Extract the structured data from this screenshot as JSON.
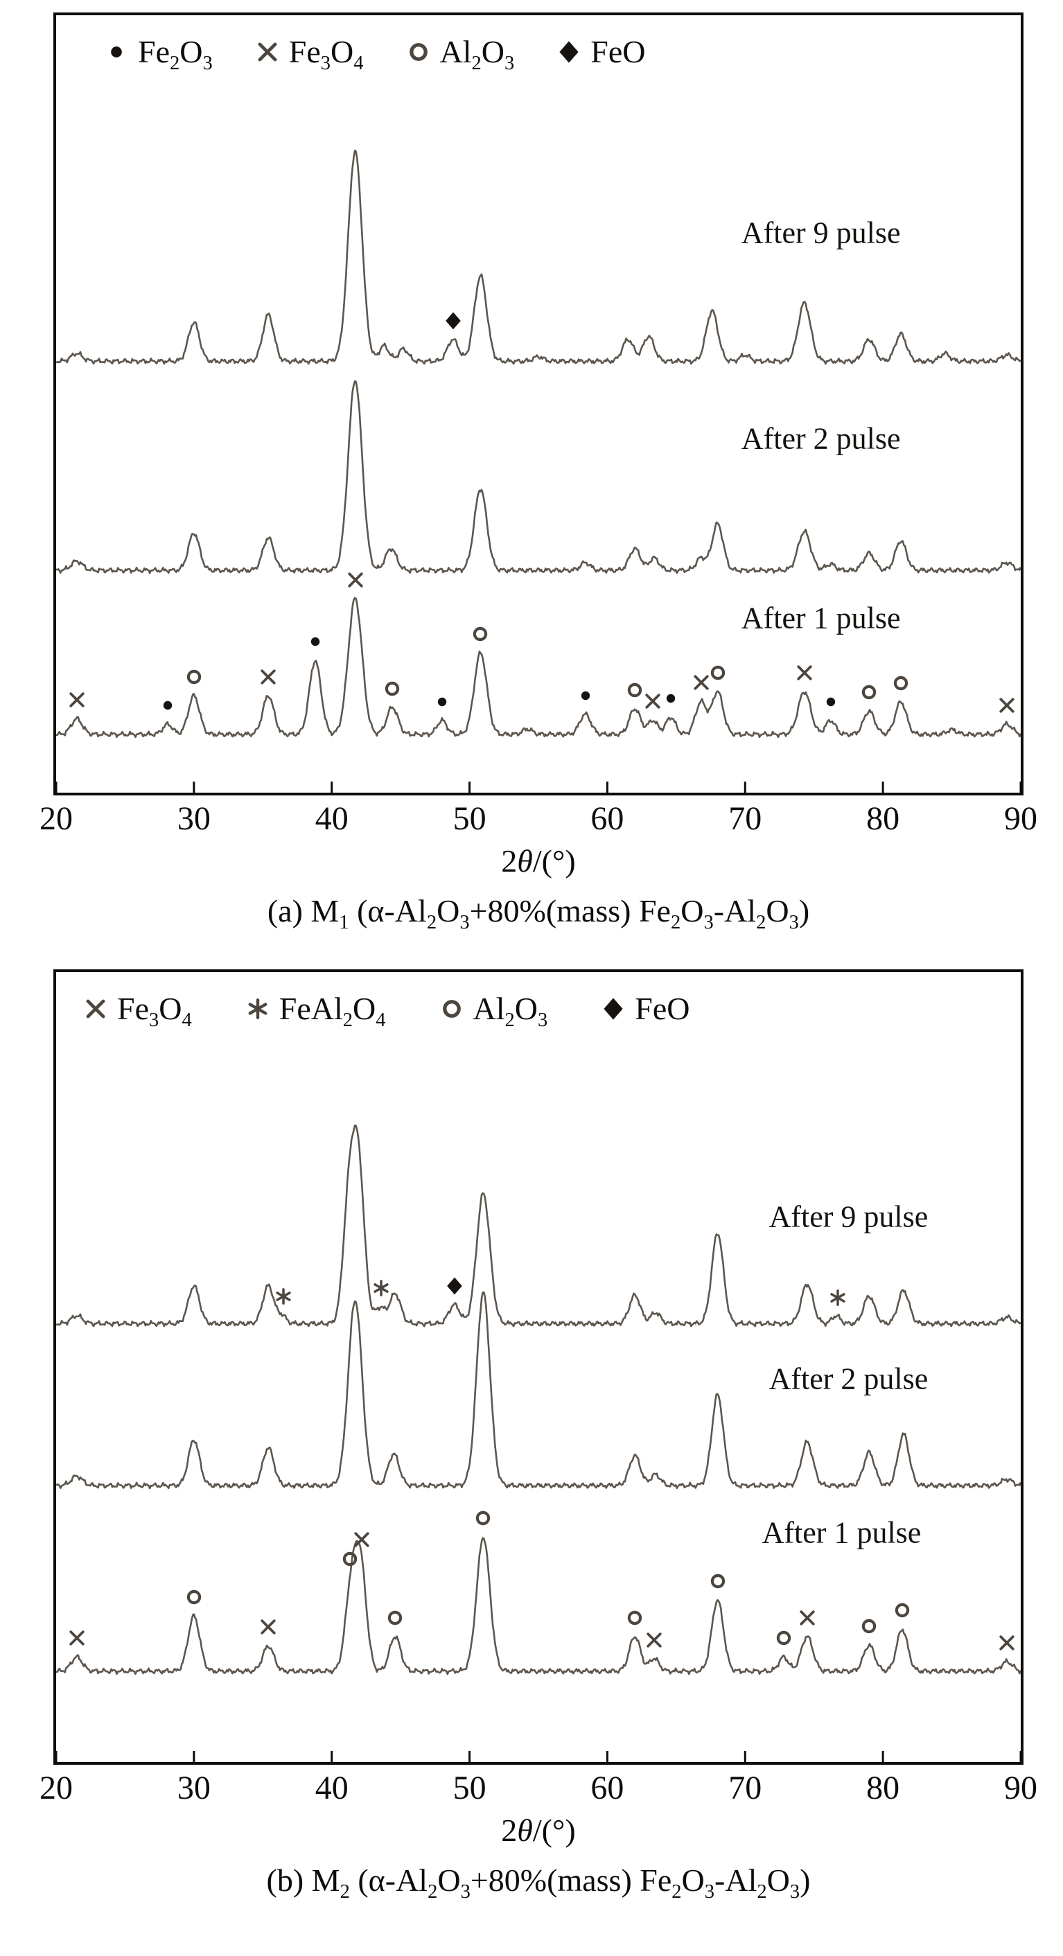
{
  "page": {
    "background": "#ffffff"
  },
  "colors": {
    "trace": "#5d564e",
    "axis": "#0e0d0b",
    "marker_black": "#15120f",
    "marker_gray": "#4d463f"
  },
  "chart_data": [
    {
      "type": "line",
      "kind": "xrd-pattern",
      "title": "",
      "xlabel": [
        [
          "2",
          0
        ],
        [
          "θ",
          0,
          "i"
        ],
        [
          "/(°)",
          0
        ]
      ],
      "ylabel": "",
      "xlim": [
        20,
        90
      ],
      "xticks": [
        20,
        30,
        40,
        50,
        60,
        70,
        80,
        90
      ],
      "grid": false,
      "legend_position": "top-left-inside",
      "legend_x": 70,
      "legend_gap": 62,
      "caption": [
        [
          "(a) M",
          0
        ],
        [
          "1",
          1
        ],
        [
          " (α-Al",
          0
        ],
        [
          "2",
          1
        ],
        [
          "O",
          0
        ],
        [
          "3",
          1
        ],
        [
          "+80%(mass) Fe",
          0
        ],
        [
          "2",
          1
        ],
        [
          "O",
          0
        ],
        [
          "3",
          1
        ],
        [
          "-Al",
          0
        ],
        [
          "2",
          1
        ],
        [
          "O",
          0
        ],
        [
          "3",
          1
        ],
        [
          ")",
          0
        ]
      ],
      "legend": [
        {
          "marker": "dot",
          "label": [
            [
              "Fe",
              0
            ],
            [
              "2",
              1
            ],
            [
              "O",
              0
            ],
            [
              "3",
              1
            ]
          ]
        },
        {
          "marker": "x",
          "label": [
            [
              "Fe",
              0
            ],
            [
              "3",
              1
            ],
            [
              "O",
              0
            ],
            [
              "4",
              1
            ]
          ]
        },
        {
          "marker": "o",
          "label": [
            [
              "Al",
              0
            ],
            [
              "2",
              1
            ],
            [
              "O",
              0
            ],
            [
              "3",
              1
            ]
          ]
        },
        {
          "marker": "diamond",
          "label": [
            [
              "FeO",
              0
            ]
          ]
        }
      ],
      "traces": [
        {
          "name": "After 1 pulse",
          "baseline": 0.075,
          "label_x": 75.5,
          "label_y": 0.225,
          "peaks": [
            [
              21.5,
              0.02,
              0.4
            ],
            [
              28.1,
              0.013,
              0.35
            ],
            [
              30.0,
              0.05,
              0.4
            ],
            [
              35.4,
              0.05,
              0.4
            ],
            [
              38.8,
              0.095,
              0.42
            ],
            [
              41.7,
              0.175,
              0.5
            ],
            [
              44.4,
              0.035,
              0.4
            ],
            [
              48.0,
              0.018,
              0.35
            ],
            [
              50.8,
              0.105,
              0.45
            ],
            [
              54.2,
              0.007,
              0.35
            ],
            [
              58.4,
              0.026,
              0.4
            ],
            [
              62.0,
              0.033,
              0.4
            ],
            [
              63.3,
              0.018,
              0.35
            ],
            [
              64.6,
              0.022,
              0.35
            ],
            [
              66.8,
              0.042,
              0.4
            ],
            [
              68.0,
              0.055,
              0.4
            ],
            [
              74.3,
              0.055,
              0.45
            ],
            [
              76.2,
              0.018,
              0.35
            ],
            [
              79.0,
              0.03,
              0.4
            ],
            [
              81.3,
              0.042,
              0.4
            ],
            [
              85.0,
              0.006,
              0.35
            ],
            [
              89.0,
              0.013,
              0.4
            ]
          ],
          "markers": [
            [
              21.5,
              "x"
            ],
            [
              28.1,
              "dot"
            ],
            [
              30.0,
              "o"
            ],
            [
              35.4,
              "x"
            ],
            [
              38.8,
              "dot"
            ],
            [
              41.7,
              "x"
            ],
            [
              44.4,
              "o"
            ],
            [
              48.0,
              "dot"
            ],
            [
              50.8,
              "o"
            ],
            [
              58.4,
              "dot"
            ],
            [
              62.0,
              "o"
            ],
            [
              63.3,
              "x"
            ],
            [
              64.6,
              "dot"
            ],
            [
              66.8,
              "x"
            ],
            [
              68.0,
              "o"
            ],
            [
              74.3,
              "x"
            ],
            [
              76.2,
              "dot"
            ],
            [
              79.0,
              "o"
            ],
            [
              81.3,
              "o"
            ],
            [
              89.0,
              "x"
            ]
          ]
        },
        {
          "name": "After 2 pulse",
          "baseline": 0.286,
          "label_x": 75.5,
          "label_y": 0.455,
          "peaks": [
            [
              21.5,
              0.012,
              0.4
            ],
            [
              30.0,
              0.048,
              0.4
            ],
            [
              35.4,
              0.042,
              0.4
            ],
            [
              41.7,
              0.245,
              0.5
            ],
            [
              44.3,
              0.028,
              0.4
            ],
            [
              50.8,
              0.105,
              0.45
            ],
            [
              58.4,
              0.01,
              0.35
            ],
            [
              62.0,
              0.028,
              0.4
            ],
            [
              63.4,
              0.016,
              0.35
            ],
            [
              66.8,
              0.016,
              0.35
            ],
            [
              68.0,
              0.06,
              0.4
            ],
            [
              74.3,
              0.05,
              0.45
            ],
            [
              76.2,
              0.008,
              0.35
            ],
            [
              79.0,
              0.022,
              0.4
            ],
            [
              81.3,
              0.038,
              0.4
            ],
            [
              89.0,
              0.01,
              0.4
            ]
          ],
          "markers": []
        },
        {
          "name": "After 9 pulse",
          "baseline": 0.555,
          "label_x": 75.5,
          "label_y": 0.72,
          "peaks": [
            [
              21.5,
              0.01,
              0.4
            ],
            [
              30.0,
              0.05,
              0.4
            ],
            [
              35.4,
              0.06,
              0.4
            ],
            [
              41.7,
              0.27,
              0.5
            ],
            [
              43.8,
              0.02,
              0.35
            ],
            [
              45.2,
              0.016,
              0.35
            ],
            [
              48.8,
              0.028,
              0.4
            ],
            [
              50.8,
              0.11,
              0.45
            ],
            [
              55.0,
              0.006,
              0.35
            ],
            [
              61.5,
              0.028,
              0.4
            ],
            [
              63.0,
              0.032,
              0.4
            ],
            [
              67.6,
              0.065,
              0.42
            ],
            [
              70.0,
              0.008,
              0.35
            ],
            [
              74.3,
              0.075,
              0.45
            ],
            [
              79.0,
              0.028,
              0.4
            ],
            [
              81.3,
              0.035,
              0.4
            ],
            [
              84.5,
              0.01,
              0.35
            ],
            [
              89.0,
              0.008,
              0.4
            ]
          ],
          "markers": [
            [
              48.8,
              "diamond"
            ]
          ]
        }
      ]
    },
    {
      "type": "line",
      "kind": "xrd-pattern",
      "title": "",
      "xlabel": [
        [
          "2",
          0
        ],
        [
          "θ",
          0,
          "i"
        ],
        [
          "/(°)",
          0
        ]
      ],
      "ylabel": "",
      "xlim": [
        20,
        90
      ],
      "xticks": [
        20,
        30,
        40,
        50,
        60,
        70,
        80,
        90
      ],
      "grid": false,
      "legend_position": "top-left-inside",
      "legend_x": 40,
      "legend_gap": 78,
      "caption": [
        [
          "(b) M",
          0
        ],
        [
          "2",
          1
        ],
        [
          " (α-Al",
          0
        ],
        [
          "2",
          1
        ],
        [
          "O",
          0
        ],
        [
          "3",
          1
        ],
        [
          "+80%(mass) Fe",
          0
        ],
        [
          "2",
          1
        ],
        [
          "O",
          0
        ],
        [
          "3",
          1
        ],
        [
          "-Al",
          0
        ],
        [
          "2",
          1
        ],
        [
          "O",
          0
        ],
        [
          "3",
          1
        ],
        [
          ")",
          0
        ]
      ],
      "legend": [
        {
          "marker": "x",
          "label": [
            [
              "Fe",
              0
            ],
            [
              "3",
              1
            ],
            [
              "O",
              0
            ],
            [
              "4",
              1
            ]
          ]
        },
        {
          "marker": "asterisk",
          "label": [
            [
              "FeAl",
              0
            ],
            [
              "2",
              1
            ],
            [
              "O",
              0
            ],
            [
              "4",
              1
            ]
          ]
        },
        {
          "marker": "o",
          "label": [
            [
              "Al",
              0
            ],
            [
              "2",
              1
            ],
            [
              "O",
              0
            ],
            [
              "3",
              1
            ]
          ]
        },
        {
          "marker": "diamond",
          "label": [
            [
              "FeO",
              0
            ]
          ]
        }
      ],
      "traces": [
        {
          "name": "After 1 pulse",
          "baseline": 0.115,
          "label_x": 77.0,
          "label_y": 0.29,
          "peaks": [
            [
              21.5,
              0.018,
              0.4
            ],
            [
              30.0,
              0.07,
              0.42
            ],
            [
              35.4,
              0.032,
              0.4
            ],
            [
              41.4,
              0.1,
              0.42
            ],
            [
              42.1,
              0.13,
              0.42
            ],
            [
              44.6,
              0.044,
              0.4
            ],
            [
              51.0,
              0.17,
              0.48
            ],
            [
              62.0,
              0.044,
              0.4
            ],
            [
              63.4,
              0.016,
              0.35
            ],
            [
              68.0,
              0.09,
              0.42
            ],
            [
              72.8,
              0.018,
              0.35
            ],
            [
              74.5,
              0.044,
              0.42
            ],
            [
              79.0,
              0.033,
              0.4
            ],
            [
              81.4,
              0.053,
              0.4
            ],
            [
              89.0,
              0.012,
              0.4
            ]
          ],
          "markers": [
            [
              21.5,
              "x"
            ],
            [
              30.0,
              "o"
            ],
            [
              35.4,
              "x"
            ],
            [
              41.3,
              "o"
            ],
            [
              42.2,
              "x"
            ],
            [
              44.6,
              "o"
            ],
            [
              51.0,
              "o"
            ],
            [
              62.0,
              "o"
            ],
            [
              63.4,
              "x"
            ],
            [
              68.0,
              "o"
            ],
            [
              72.8,
              "o"
            ],
            [
              74.5,
              "x"
            ],
            [
              79.0,
              "o"
            ],
            [
              81.4,
              "o"
            ],
            [
              89.0,
              "x"
            ]
          ]
        },
        {
          "name": "After 2 pulse",
          "baseline": 0.35,
          "label_x": 77.5,
          "label_y": 0.485,
          "peaks": [
            [
              21.5,
              0.012,
              0.4
            ],
            [
              30.0,
              0.058,
              0.4
            ],
            [
              35.4,
              0.048,
              0.4
            ],
            [
              41.7,
              0.235,
              0.5
            ],
            [
              44.5,
              0.04,
              0.4
            ],
            [
              51.0,
              0.245,
              0.48
            ],
            [
              62.0,
              0.038,
              0.4
            ],
            [
              63.5,
              0.014,
              0.35
            ],
            [
              68.0,
              0.115,
              0.42
            ],
            [
              74.5,
              0.055,
              0.42
            ],
            [
              79.0,
              0.042,
              0.4
            ],
            [
              81.5,
              0.065,
              0.4
            ],
            [
              89.0,
              0.008,
              0.4
            ]
          ],
          "markers": []
        },
        {
          "name": "After 9 pulse",
          "baseline": 0.555,
          "label_x": 77.5,
          "label_y": 0.69,
          "peaks": [
            [
              21.5,
              0.01,
              0.4
            ],
            [
              30.0,
              0.048,
              0.4
            ],
            [
              35.4,
              0.048,
              0.4
            ],
            [
              36.4,
              0.01,
              0.3
            ],
            [
              41.2,
              0.13,
              0.4
            ],
            [
              41.9,
              0.21,
              0.45
            ],
            [
              43.5,
              0.02,
              0.35
            ],
            [
              44.6,
              0.038,
              0.4
            ],
            [
              48.9,
              0.024,
              0.4
            ],
            [
              51.0,
              0.165,
              0.48
            ],
            [
              62.0,
              0.036,
              0.4
            ],
            [
              63.5,
              0.014,
              0.35
            ],
            [
              68.0,
              0.115,
              0.42
            ],
            [
              74.5,
              0.05,
              0.42
            ],
            [
              76.6,
              0.01,
              0.3
            ],
            [
              79.0,
              0.035,
              0.4
            ],
            [
              81.5,
              0.042,
              0.4
            ],
            [
              89.0,
              0.008,
              0.4
            ]
          ],
          "markers": [
            [
              36.5,
              "asterisk"
            ],
            [
              43.6,
              "asterisk"
            ],
            [
              48.9,
              "diamond"
            ],
            [
              76.7,
              "asterisk"
            ]
          ]
        }
      ]
    }
  ]
}
